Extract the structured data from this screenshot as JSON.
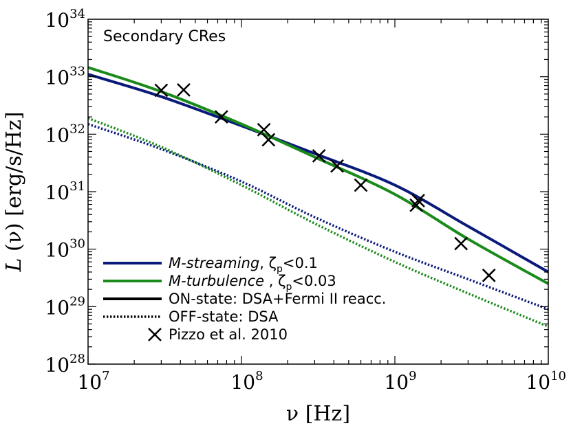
{
  "chart_data": {
    "type": "line",
    "title": "",
    "annotation": "Secondary CRes",
    "xlabel": "ν [Hz]",
    "ylabel": "L (ν) [erg/s/Hz]",
    "ylabel_symbol": "L",
    "ylabel_rest": " (ν) [erg/s/Hz]",
    "x_scale": "log",
    "y_scale": "log",
    "xlim": [
      10000000.0,
      10000000000.0
    ],
    "ylim": [
      1e+28,
      1e+34
    ],
    "x_ticks": [
      {
        "base": "10",
        "exp": "7",
        "value": 10000000.0
      },
      {
        "base": "10",
        "exp": "8",
        "value": 100000000.0
      },
      {
        "base": "10",
        "exp": "9",
        "value": 1000000000.0
      },
      {
        "base": "10",
        "exp": "10",
        "value": 10000000000.0
      }
    ],
    "y_ticks": [
      {
        "base": "10",
        "exp": "28",
        "value": 1e+28
      },
      {
        "base": "10",
        "exp": "29",
        "value": 1e+29
      },
      {
        "base": "10",
        "exp": "30",
        "value": 1e+30
      },
      {
        "base": "10",
        "exp": "31",
        "value": 1e+31
      },
      {
        "base": "10",
        "exp": "32",
        "value": 1e+32
      },
      {
        "base": "10",
        "exp": "33",
        "value": 1e+33
      },
      {
        "base": "10",
        "exp": "34",
        "value": 1e+34
      }
    ],
    "grid": false,
    "legend_position": "bottom-left",
    "colors": {
      "streaming": "#0a1a7a",
      "turbulence": "#1a8a1a",
      "black": "#000000"
    },
    "series": [
      {
        "name": "M-streaming ON-state",
        "color": "#0a1a7a",
        "style": "solid",
        "x": [
          10000000.0,
          30000000.0,
          100000000.0,
          300000000.0,
          1000000000.0,
          3000000000.0,
          10000000000.0
        ],
        "y": [
          1.1e+33,
          4.5e+32,
          1.4e+32,
          4.6e+31,
          1.3e+31,
          2.5e+30,
          4e+29
        ]
      },
      {
        "name": "M-turbulence ON-state",
        "color": "#1a8a1a",
        "style": "solid",
        "x": [
          10000000.0,
          30000000.0,
          100000000.0,
          300000000.0,
          1000000000.0,
          3000000000.0,
          10000000000.0
        ],
        "y": [
          1.45e+33,
          5.5e+32,
          1.5e+32,
          4e+31,
          9e+30,
          1.5e+30,
          2.5e+29
        ]
      },
      {
        "name": "M-streaming OFF-state",
        "color": "#0a1a7a",
        "style": "dotted",
        "x": [
          10000000.0,
          30000000.0,
          100000000.0,
          300000000.0,
          1000000000.0,
          3000000000.0,
          10000000000.0
        ],
        "y": [
          1.5e+32,
          5.5e+31,
          1.5e+31,
          3.6e+30,
          9e+29,
          3e+29,
          9e+28
        ]
      },
      {
        "name": "M-turbulence OFF-state",
        "color": "#1a8a1a",
        "style": "dotted",
        "x": [
          10000000.0,
          30000000.0,
          100000000.0,
          300000000.0,
          1000000000.0,
          3000000000.0,
          10000000000.0
        ],
        "y": [
          1.9e+32,
          6e+31,
          1.3e+31,
          2.8e+30,
          6e+29,
          1.7e+29,
          4.5e+28
        ]
      }
    ],
    "observations": {
      "name": "Pizzo et al. 2010",
      "marker": "x",
      "x": [
        30000000.0,
        42000000.0,
        74000000.0,
        140000000.0,
        150000000.0,
        320000000.0,
        420000000.0,
        600000000.0,
        1380000000.0,
        1420000000.0,
        2700000000.0,
        4100000000.0
      ],
      "y": [
        5.8e+32,
        5.9e+32,
        2e+32,
        1.2e+32,
        8e+31,
        4.2e+31,
        2.8e+31,
        1.3e+31,
        5.8e+30,
        7e+30,
        1.25e+30,
        3.5e+29
      ]
    },
    "legend": [
      {
        "key": "streaming",
        "style": "solid",
        "color": "#0a1a7a",
        "italic": "M-streaming",
        "rest": ",  ζ",
        "sub": "p",
        "tail": "<0.1"
      },
      {
        "key": "turbulence",
        "style": "solid",
        "color": "#1a8a1a",
        "italic": "M-turbulence",
        "rest": "  , ζ",
        "sub": "p",
        "tail": "<0.03"
      },
      {
        "key": "on",
        "style": "solid",
        "color": "#000000",
        "italic": "",
        "rest": "ON-state:  DSA+Fermi II reacc.",
        "sub": "",
        "tail": ""
      },
      {
        "key": "off",
        "style": "dotted",
        "color": "#000000",
        "italic": "",
        "rest": "OFF-state: DSA",
        "sub": "",
        "tail": ""
      },
      {
        "key": "obs",
        "style": "marker",
        "color": "#000000",
        "italic": "",
        "rest": "Pizzo et al. 2010",
        "sub": "",
        "tail": ""
      }
    ]
  }
}
